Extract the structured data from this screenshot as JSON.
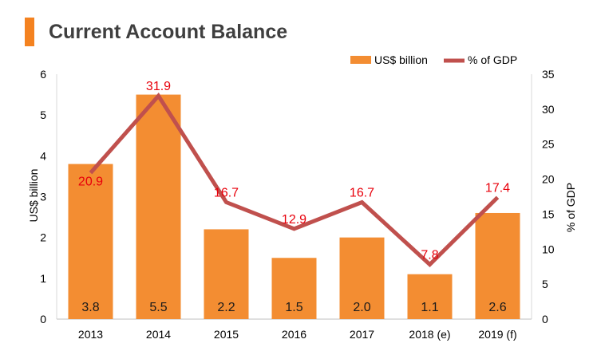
{
  "title": "Current Account Balance",
  "colors": {
    "accent": "#f48220",
    "bar": "#f38d32",
    "line": "#c0504d",
    "line_label": "#e8000b",
    "bar_label": "#1a1a1a",
    "axis_text": "#000000",
    "title_text": "#3f3f3f"
  },
  "chart_data": {
    "type": "bar",
    "categories": [
      "2013",
      "2014",
      "2015",
      "2016",
      "2017",
      "2018 (e)",
      "2019 (f)"
    ],
    "series": [
      {
        "name": "US$ billion",
        "kind": "bar",
        "axis": "left",
        "values": [
          3.8,
          5.5,
          2.2,
          1.5,
          2.0,
          1.1,
          2.6
        ]
      },
      {
        "name": "% of GDP",
        "kind": "line",
        "axis": "right",
        "values": [
          20.9,
          31.9,
          16.7,
          12.9,
          16.7,
          7.8,
          17.4
        ]
      }
    ],
    "bar_labels": [
      "3.8",
      "5.5",
      "2.2",
      "1.5",
      "2.0",
      "1.1",
      "2.6"
    ],
    "line_labels": [
      "20.9",
      "31.9",
      "16.7",
      "12.9",
      "16.7",
      "7.8",
      "17.4"
    ],
    "ylabel": "US$ billion",
    "y2label": "% of GDP",
    "ylim": [
      0,
      6
    ],
    "y2lim": [
      0,
      35
    ],
    "yticks": [
      "0",
      "1",
      "2",
      "3",
      "4",
      "5",
      "6"
    ],
    "y2ticks": [
      "0",
      "5",
      "10",
      "15",
      "20",
      "25",
      "30",
      "35"
    ],
    "grid": false,
    "legend_position": "top-right"
  }
}
